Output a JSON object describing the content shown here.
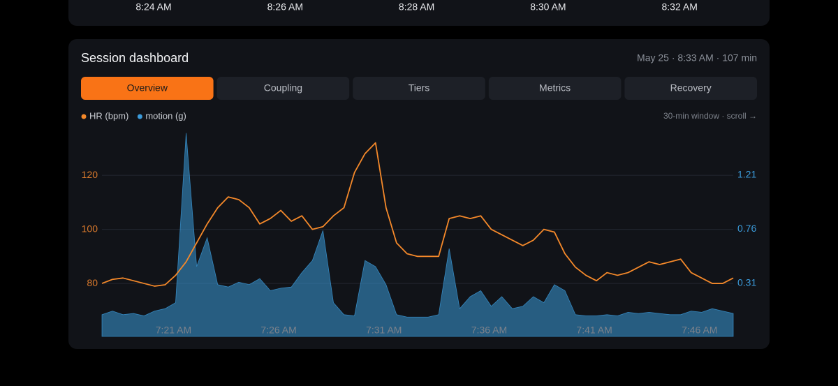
{
  "top_card": {
    "times": [
      "8:24 AM",
      "8:26 AM",
      "8:28 AM",
      "8:30 AM",
      "8:32 AM"
    ]
  },
  "header": {
    "title": "Session dashboard",
    "meta": "May 25 · 8:33 AM · 107 min"
  },
  "tabs": [
    {
      "label": "Overview",
      "active": true
    },
    {
      "label": "Coupling",
      "active": false
    },
    {
      "label": "Tiers",
      "active": false
    },
    {
      "label": "Metrics",
      "active": false
    },
    {
      "label": "Recovery",
      "active": false
    }
  ],
  "window_note": "30-min window · scroll →",
  "chart_data": {
    "type": "line",
    "x": [
      17.6,
      18.1,
      18.6,
      19.1,
      19.6,
      20.1,
      20.6,
      21.1,
      21.6,
      22.1,
      22.6,
      23.1,
      23.6,
      24.1,
      24.6,
      25.1,
      25.6,
      26.1,
      26.6,
      27.1,
      27.6,
      28.1,
      28.6,
      29.1,
      29.6,
      30.1,
      30.6,
      31.1,
      31.6,
      32.1,
      32.6,
      33.1,
      33.6,
      34.1,
      34.6,
      35.1,
      35.6,
      36.1,
      36.6,
      37.1,
      37.6,
      38.1,
      38.6,
      39.1,
      39.6,
      40.1,
      40.6,
      41.1,
      41.6,
      42.1,
      42.6,
      43.1,
      43.6,
      44.1,
      44.6,
      45.1,
      45.6,
      46.1,
      46.6,
      47.1,
      47.6
    ],
    "xlim": [
      17.6,
      47.6
    ],
    "xticks": [
      {
        "value": 21,
        "label": "7:21 AM"
      },
      {
        "value": 26,
        "label": "7:26 AM"
      },
      {
        "value": 31,
        "label": "7:31 AM"
      },
      {
        "value": 36,
        "label": "7:36 AM"
      },
      {
        "value": 41,
        "label": "7:41 AM"
      },
      {
        "value": 46,
        "label": "7:46 AM"
      }
    ],
    "ylim": [
      60.4,
      136.8
    ],
    "yticks": [
      80,
      100,
      120
    ],
    "y2lim": [
      -0.131,
      1.587
    ],
    "y2ticks": [
      0.31,
      0.76,
      1.21
    ],
    "grid": true,
    "series": [
      {
        "name": "HR (bpm)",
        "color": "#f5892a",
        "type": "line",
        "values": [
          80,
          81.5,
          82,
          81,
          80,
          79,
          79.5,
          83,
          88,
          95,
          102,
          108,
          112,
          111,
          108,
          102,
          104,
          107,
          103,
          105,
          100,
          101,
          105,
          108,
          121,
          128,
          132,
          108,
          95,
          91,
          90,
          90,
          90,
          104,
          105,
          104,
          105,
          100,
          98,
          96,
          94,
          96,
          100,
          99,
          91,
          86,
          83,
          81,
          84,
          83,
          84,
          86,
          88,
          87,
          88,
          89,
          84,
          82,
          80,
          80,
          82
        ]
      },
      {
        "name": "motion (g)",
        "color": "#3b9ad9",
        "type": "area",
        "axis": "y2",
        "values": [
          0.05,
          0.08,
          0.05,
          0.06,
          0.04,
          0.08,
          0.1,
          0.15,
          1.56,
          0.45,
          0.69,
          0.3,
          0.28,
          0.32,
          0.3,
          0.35,
          0.25,
          0.27,
          0.28,
          0.4,
          0.5,
          0.75,
          0.15,
          0.05,
          0.04,
          0.5,
          0.45,
          0.3,
          0.05,
          0.03,
          0.03,
          0.03,
          0.05,
          0.6,
          0.1,
          0.2,
          0.25,
          0.12,
          0.2,
          0.1,
          0.12,
          0.2,
          0.15,
          0.3,
          0.25,
          0.05,
          0.04,
          0.04,
          0.05,
          0.04,
          0.07,
          0.06,
          0.07,
          0.06,
          0.05,
          0.05,
          0.08,
          0.07,
          0.1,
          0.08,
          0.06
        ]
      }
    ]
  }
}
